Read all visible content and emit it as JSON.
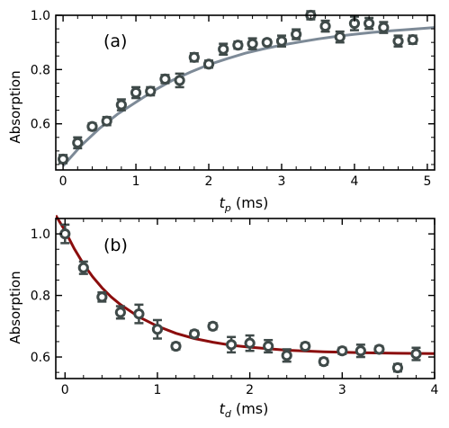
{
  "colors": {
    "marker_face": "#ffffff",
    "marker_edge": "#3f4a49",
    "errorbar": "#3f4a49",
    "fit_a": "#7d8a97",
    "fit_b": "#8b0d0d"
  },
  "chart_data": [
    {
      "type": "scatter",
      "panel_label": "(a)",
      "xlabel_main": "t",
      "xlabel_sub": "p",
      "xlabel_unit": " (ms)",
      "ylabel": "Absorption",
      "xlim": [
        -0.1,
        5.1
      ],
      "ylim": [
        0.43,
        1.0
      ],
      "xticks": [
        0,
        1,
        2,
        3,
        4,
        5
      ],
      "xticklabels": [
        "0",
        "1",
        "2",
        "3",
        "4",
        "5"
      ],
      "yticks": [
        0.6,
        0.8,
        1.0
      ],
      "yticklabels": [
        "0.6",
        "0.8",
        "1.0"
      ],
      "grid": false,
      "series": [
        {
          "kind": "points",
          "x": [
            0.0,
            0.2,
            0.4,
            0.6,
            0.8,
            1.0,
            1.2,
            1.4,
            1.6,
            1.8,
            2.0,
            2.2,
            2.4,
            2.6,
            2.8,
            3.0,
            3.2,
            3.4,
            3.6,
            3.8,
            4.0,
            4.2,
            4.4,
            4.6,
            4.8
          ],
          "y": [
            0.47,
            0.53,
            0.59,
            0.61,
            0.67,
            0.715,
            0.72,
            0.765,
            0.76,
            0.845,
            0.82,
            0.875,
            0.89,
            0.895,
            0.9,
            0.905,
            0.93,
            1.0,
            0.96,
            0.92,
            0.97,
            0.97,
            0.955,
            0.905,
            0.91
          ],
          "err": [
            0.015,
            0.02,
            0.012,
            0.015,
            0.02,
            0.02,
            0.015,
            0.015,
            0.025,
            0.015,
            0.013,
            0.02,
            0.013,
            0.02,
            0.01,
            0.02,
            0.018,
            0.015,
            0.02,
            0.02,
            0.025,
            0.02,
            0.02,
            0.02,
            0.015
          ]
        },
        {
          "kind": "fit",
          "x": [
            0.0,
            0.25,
            0.5,
            0.75,
            1.0,
            1.25,
            1.5,
            1.75,
            2.0,
            2.25,
            2.5,
            2.75,
            3.0,
            3.25,
            3.5,
            3.75,
            4.0,
            4.25,
            4.5,
            4.75,
            5.0,
            5.1
          ],
          "y": [
            0.445,
            0.52,
            0.583,
            0.636,
            0.68,
            0.723,
            0.76,
            0.791,
            0.818,
            0.84,
            0.86,
            0.876,
            0.89,
            0.902,
            0.913,
            0.922,
            0.93,
            0.937,
            0.943,
            0.948,
            0.953,
            0.955
          ]
        }
      ]
    },
    {
      "type": "scatter",
      "panel_label": "(b)",
      "xlabel_main": "t",
      "xlabel_sub": "d",
      "xlabel_unit": " (ms)",
      "ylabel": "Absorption",
      "xlim": [
        -0.1,
        4.0
      ],
      "ylim": [
        0.53,
        1.05
      ],
      "xticks": [
        0,
        1,
        2,
        3,
        4
      ],
      "xticklabels": [
        "0",
        "1",
        "2",
        "3",
        "4"
      ],
      "yticks": [
        0.6,
        0.8,
        1.0
      ],
      "yticklabels": [
        "0.6",
        "0.8",
        "1.0"
      ],
      "grid": false,
      "series": [
        {
          "kind": "points",
          "x": [
            0.0,
            0.2,
            0.4,
            0.6,
            0.8,
            1.0,
            1.2,
            1.4,
            1.6,
            1.8,
            2.0,
            2.2,
            2.4,
            2.6,
            2.8,
            3.0,
            3.2,
            3.4,
            3.6,
            3.8
          ],
          "y": [
            1.0,
            0.89,
            0.795,
            0.745,
            0.74,
            0.69,
            0.635,
            0.675,
            0.7,
            0.64,
            0.645,
            0.635,
            0.605,
            0.635,
            0.585,
            0.62,
            0.62,
            0.625,
            0.565,
            0.61
          ],
          "err": [
            0.03,
            0.02,
            0.015,
            0.02,
            0.03,
            0.03,
            0.01,
            0.01,
            0.01,
            0.025,
            0.025,
            0.02,
            0.02,
            0.01,
            0.01,
            0.01,
            0.02,
            0.01,
            0.012,
            0.02
          ]
        },
        {
          "kind": "fit",
          "x": [
            -0.1,
            0.0,
            0.1,
            0.2,
            0.3,
            0.4,
            0.5,
            0.6,
            0.8,
            1.0,
            1.2,
            1.4,
            1.6,
            1.8,
            2.0,
            2.4,
            2.8,
            3.2,
            3.6,
            4.0
          ],
          "y": [
            1.06,
            1.01,
            0.952,
            0.902,
            0.86,
            0.825,
            0.795,
            0.77,
            0.73,
            0.7,
            0.677,
            0.66,
            0.648,
            0.638,
            0.632,
            0.622,
            0.617,
            0.614,
            0.612,
            0.611
          ]
        }
      ]
    }
  ]
}
